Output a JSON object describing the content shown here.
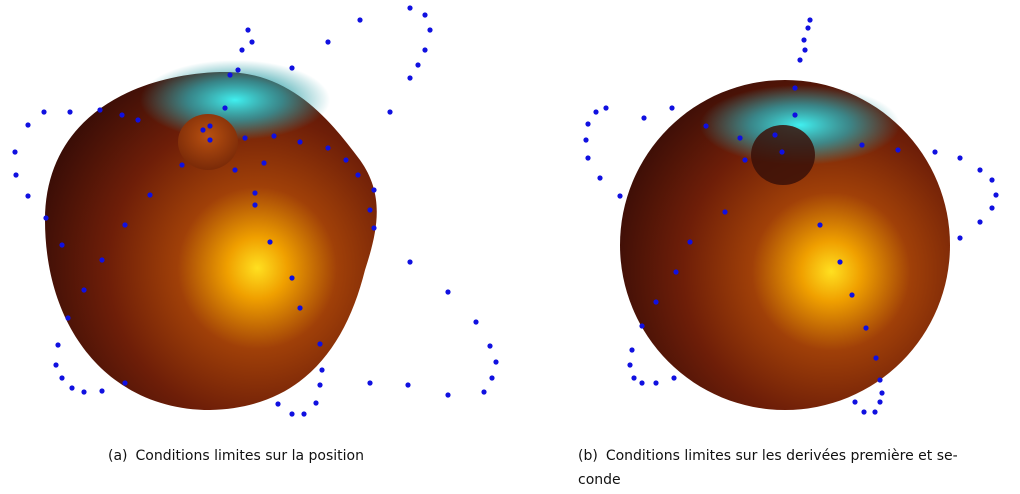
{
  "figure": {
    "subfigures": [
      {
        "label": "(a)",
        "caption_lines": [
          "Conditions limites sur la position"
        ]
      },
      {
        "label": "(b)",
        "caption_lines": [
          "Conditions limites sur les derivées première et se-",
          "conde"
        ]
      }
    ]
  }
}
